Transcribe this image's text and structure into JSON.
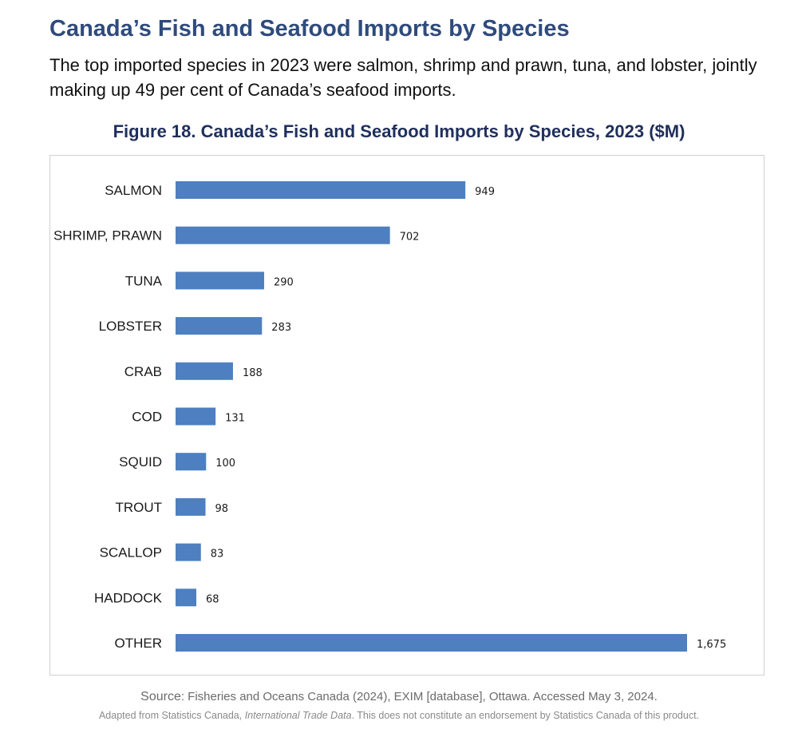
{
  "header": {
    "title": "Canada’s Fish and Seafood Imports by Species",
    "intro": "The top imported species in 2023 were salmon, shrimp and prawn, tuna, and lobster, jointly making up 49 per cent of Canada’s seafood imports."
  },
  "chart_data": {
    "type": "bar",
    "orientation": "horizontal",
    "title": "Figure 18. Canada’s Fish and Seafood Imports by Species, 2023 ($M)",
    "categories": [
      "SALMON",
      "SHRIMP, PRAWN",
      "TUNA",
      "LOBSTER",
      "CRAB",
      "COD",
      "SQUID",
      "TROUT",
      "SCALLOP",
      "HADDOCK",
      "OTHER"
    ],
    "values": [
      949,
      702,
      290,
      283,
      188,
      131,
      100,
      98,
      83,
      68,
      1675
    ],
    "value_labels": [
      "949",
      "702",
      "290",
      "283",
      "188",
      "131",
      "100",
      "98",
      "83",
      "68",
      "1,675"
    ],
    "xlim": [
      0,
      1675
    ],
    "grid": false,
    "legend": "none",
    "bar_color": "#4e7fc0"
  },
  "footer": {
    "source_key": "Source",
    "source_text": ": Fisheries and Oceans Canada (2024), EXIM [database], Ottawa. Accessed May 3, 2024.",
    "note_prefix": "Adapted from Statistics Canada, ",
    "note_italic": "International Trade Data",
    "note_suffix": ". This does not constitute an endorsement by Statistics Canada of this product."
  }
}
